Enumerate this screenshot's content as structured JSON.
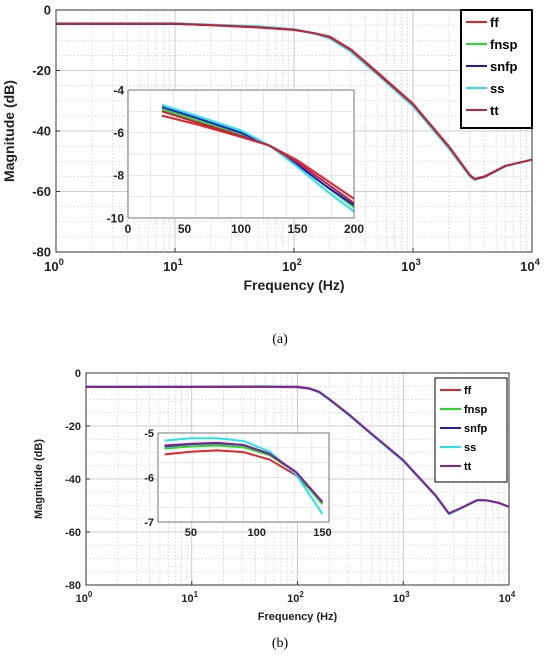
{
  "captions": [
    "(a)",
    "(b)"
  ],
  "chart_data": [
    {
      "type": "line",
      "panel": "a",
      "xlabel": "Frequency (Hz)",
      "ylabel": "Magnitude (dB)",
      "xscale": "log",
      "xlim": [
        1,
        10000
      ],
      "ylim": [
        -80,
        0
      ],
      "xticks": [
        {
          "base": "10",
          "exp": "0",
          "v": 1
        },
        {
          "base": "10",
          "exp": "1",
          "v": 10
        },
        {
          "base": "10",
          "exp": "2",
          "v": 100
        },
        {
          "base": "10",
          "exp": "3",
          "v": 1000
        },
        {
          "base": "10",
          "exp": "4",
          "v": 10000
        }
      ],
      "yticks": [
        {
          "label": "0",
          "v": 0
        },
        {
          "label": "-20",
          "v": -20
        },
        {
          "label": "-40",
          "v": -40
        },
        {
          "label": "-60",
          "v": -60
        },
        {
          "label": "-80",
          "v": -80
        }
      ],
      "grid": true,
      "legend": "top-right",
      "series": [
        {
          "name": "ff",
          "color": "#e8202a",
          "x": [
            1,
            10,
            50,
            100,
            150,
            200,
            300,
            500,
            1000,
            2000,
            3000,
            3300,
            4000,
            6000,
            10000
          ],
          "y": [
            -4.5,
            -4.5,
            -5.8,
            -6.6,
            -7.7,
            -8.8,
            -13,
            -20.5,
            -31,
            -45,
            -54.5,
            -55.8,
            -55,
            -51.5,
            -49.5
          ]
        },
        {
          "name": "fnsp",
          "color": "#22dd22",
          "x": [
            1,
            10,
            50,
            100,
            150,
            200,
            300,
            500,
            1000,
            2000,
            3000,
            3300,
            4000,
            6000,
            10000
          ],
          "y": [
            -4.6,
            -4.6,
            -5.6,
            -6.5,
            -7.8,
            -9.2,
            -13.5,
            -21,
            -31.5,
            -45.5,
            -54.8,
            -56,
            -55.2,
            -51.6,
            -49.5
          ]
        },
        {
          "name": "snfp",
          "color": "#1a1acc",
          "x": [
            1,
            10,
            50,
            100,
            150,
            200,
            300,
            500,
            1000,
            2000,
            3000,
            3300,
            4000,
            6000,
            10000
          ],
          "y": [
            -4.6,
            -4.6,
            -5.5,
            -6.4,
            -7.8,
            -9.3,
            -13.6,
            -21.1,
            -31.6,
            -45.6,
            -54.9,
            -56,
            -55.2,
            -51.6,
            -49.5
          ]
        },
        {
          "name": "ss",
          "color": "#22e5e5",
          "x": [
            1,
            10,
            50,
            100,
            150,
            200,
            300,
            500,
            1000,
            2000,
            3000,
            3300,
            4000,
            6000,
            10000
          ],
          "y": [
            -4.4,
            -4.4,
            -5.4,
            -6.3,
            -7.9,
            -9.4,
            -13.8,
            -21.3,
            -31.8,
            -45.8,
            -55,
            -56.2,
            -55.3,
            -51.7,
            -49.5
          ]
        },
        {
          "name": "tt",
          "color": "#c8203c",
          "x": [
            1,
            10,
            50,
            100,
            150,
            200,
            300,
            500,
            1000,
            2000,
            3000,
            3300,
            4000,
            6000,
            10000
          ],
          "y": [
            -4.5,
            -4.5,
            -5.7,
            -6.5,
            -7.7,
            -9.0,
            -13.2,
            -20.8,
            -31.2,
            -45.2,
            -54.6,
            -55.9,
            -55.1,
            -51.5,
            -49.5
          ]
        }
      ],
      "inset": {
        "xlim": [
          0,
          200
        ],
        "ylim": [
          -10,
          -4
        ],
        "xticks": [
          {
            "label": "0",
            "v": 0
          },
          {
            "label": "50",
            "v": 50
          },
          {
            "label": "100",
            "v": 100
          },
          {
            "label": "150",
            "v": 150
          },
          {
            "label": "200",
            "v": 200
          }
        ],
        "yticks": [
          {
            "label": "-4",
            "v": -4
          },
          {
            "label": "-6",
            "v": -6
          },
          {
            "label": "-8",
            "v": -8
          },
          {
            "label": "-10",
            "v": -10
          }
        ],
        "series": [
          {
            "name": "ff",
            "color": "#e8202a",
            "x": [
              30,
              60,
              100,
              125,
              150,
              175,
              200
            ],
            "y": [
              -5.2,
              -5.6,
              -6.2,
              -6.6,
              -7.3,
              -8.2,
              -9.1
            ]
          },
          {
            "name": "fnsp",
            "color": "#22dd22",
            "x": [
              30,
              60,
              100,
              125,
              150,
              175,
              200
            ],
            "y": [
              -4.9,
              -5.4,
              -6.1,
              -6.6,
              -7.5,
              -8.5,
              -9.5
            ]
          },
          {
            "name": "snfp",
            "color": "#1a1acc",
            "x": [
              30,
              60,
              100,
              125,
              150,
              175,
              200
            ],
            "y": [
              -4.8,
              -5.3,
              -6.0,
              -6.6,
              -7.5,
              -8.5,
              -9.4
            ]
          },
          {
            "name": "ss",
            "color": "#22e5e5",
            "x": [
              30,
              60,
              100,
              125,
              150,
              175,
              200
            ],
            "y": [
              -4.7,
              -5.2,
              -5.9,
              -6.6,
              -7.6,
              -8.7,
              -9.7
            ]
          },
          {
            "name": "tt",
            "color": "#c8203c",
            "x": [
              30,
              60,
              100,
              125,
              150,
              175,
              200
            ],
            "y": [
              -5.0,
              -5.5,
              -6.15,
              -6.6,
              -7.4,
              -8.35,
              -9.3
            ]
          }
        ]
      }
    },
    {
      "type": "line",
      "panel": "b",
      "xlabel": "Frequency (Hz)",
      "ylabel": "Magnitude (dB)",
      "xscale": "log",
      "xlim": [
        1,
        10000
      ],
      "ylim": [
        -80,
        0
      ],
      "xticks": [
        {
          "base": "10",
          "exp": "0",
          "v": 1
        },
        {
          "base": "10",
          "exp": "1",
          "v": 10
        },
        {
          "base": "10",
          "exp": "2",
          "v": 100
        },
        {
          "base": "10",
          "exp": "3",
          "v": 1000
        },
        {
          "base": "10",
          "exp": "4",
          "v": 10000
        }
      ],
      "yticks": [
        {
          "label": "0",
          "v": 0
        },
        {
          "label": "-20",
          "v": -20
        },
        {
          "label": "-40",
          "v": -40
        },
        {
          "label": "-60",
          "v": -60
        },
        {
          "label": "-80",
          "v": -80
        }
      ],
      "grid": true,
      "legend": "top-right",
      "series": [
        {
          "name": "ff",
          "color": "#e8202a",
          "x": [
            1,
            10,
            50,
            100,
            130,
            160,
            200,
            300,
            500,
            1000,
            2000,
            2700,
            3500,
            5000,
            6000,
            8000,
            10000
          ],
          "y": [
            -5.3,
            -5.3,
            -5.3,
            -5.4,
            -6.0,
            -7.2,
            -10,
            -15.5,
            -23,
            -33,
            -46,
            -53,
            -51,
            -48,
            -48,
            -49,
            -50.5
          ]
        },
        {
          "name": "fnsp",
          "color": "#22dd22",
          "x": [
            1,
            10,
            50,
            100,
            130,
            160,
            200,
            300,
            500,
            1000,
            2000,
            2700,
            3500,
            5000,
            6000,
            8000,
            10000
          ],
          "y": [
            -5.2,
            -5.2,
            -5.2,
            -5.3,
            -5.9,
            -7.1,
            -9.9,
            -15.4,
            -22.9,
            -33,
            -46,
            -53,
            -51,
            -48,
            -48,
            -49,
            -50.5
          ]
        },
        {
          "name": "snfp",
          "color": "#1a1acc",
          "x": [
            1,
            10,
            50,
            100,
            130,
            160,
            200,
            300,
            500,
            1000,
            2000,
            2700,
            3500,
            5000,
            6000,
            8000,
            10000
          ],
          "y": [
            -5.2,
            -5.2,
            -5.1,
            -5.2,
            -5.8,
            -7.1,
            -9.9,
            -15.4,
            -22.9,
            -33,
            -46,
            -53,
            -51,
            -48,
            -48,
            -49,
            -50.5
          ]
        },
        {
          "name": "ss",
          "color": "#22e5e5",
          "x": [
            1,
            10,
            50,
            100,
            130,
            160,
            200,
            300,
            500,
            1000,
            2000,
            2700,
            3500,
            5000,
            6000,
            8000,
            10000
          ],
          "y": [
            -5.1,
            -5.1,
            -5.0,
            -5.2,
            -6.0,
            -7.4,
            -10.2,
            -15.7,
            -23.2,
            -33.3,
            -46.3,
            -53.3,
            -51.2,
            -48.1,
            -48,
            -49,
            -50.5
          ]
        },
        {
          "name": "tt",
          "color": "#8a1f9a",
          "x": [
            1,
            10,
            50,
            100,
            130,
            160,
            200,
            300,
            500,
            1000,
            2000,
            2700,
            3500,
            5000,
            6000,
            8000,
            10000
          ],
          "y": [
            -5.2,
            -5.2,
            -5.15,
            -5.25,
            -5.85,
            -7.1,
            -9.9,
            -15.4,
            -22.9,
            -33,
            -46,
            -53,
            -51,
            -48,
            -48,
            -49,
            -50.5
          ]
        }
      ],
      "inset": {
        "xlim": [
          25,
          155
        ],
        "ylim": [
          -7,
          -5
        ],
        "xticks": [
          {
            "label": "50",
            "v": 50
          },
          {
            "label": "100",
            "v": 100
          },
          {
            "label": "150",
            "v": 150
          }
        ],
        "yticks": [
          {
            "label": "-5",
            "v": -5
          },
          {
            "label": "-6",
            "v": -6
          },
          {
            "label": "-7",
            "v": -7
          }
        ],
        "series": [
          {
            "name": "ff",
            "color": "#e8202a",
            "x": [
              30,
              50,
              70,
              90,
              110,
              130,
              150
            ],
            "y": [
              -5.48,
              -5.42,
              -5.39,
              -5.43,
              -5.6,
              -5.95,
              -6.55
            ]
          },
          {
            "name": "fnsp",
            "color": "#22dd22",
            "x": [
              30,
              50,
              70,
              90,
              110,
              130,
              150
            ],
            "y": [
              -5.35,
              -5.3,
              -5.28,
              -5.32,
              -5.5,
              -5.9,
              -6.6
            ]
          },
          {
            "name": "snfp",
            "color": "#1a1acc",
            "x": [
              30,
              50,
              70,
              90,
              110,
              130,
              150
            ],
            "y": [
              -5.3,
              -5.25,
              -5.23,
              -5.27,
              -5.47,
              -5.88,
              -6.55
            ]
          },
          {
            "name": "ss",
            "color": "#22e5e5",
            "x": [
              30,
              50,
              70,
              90,
              110,
              130,
              150
            ],
            "y": [
              -5.17,
              -5.12,
              -5.12,
              -5.18,
              -5.42,
              -5.93,
              -6.82
            ]
          },
          {
            "name": "tt",
            "color": "#8a1f9a",
            "x": [
              30,
              50,
              70,
              90,
              110,
              130,
              150
            ],
            "y": [
              -5.28,
              -5.24,
              -5.22,
              -5.27,
              -5.47,
              -5.88,
              -6.55
            ]
          }
        ]
      }
    }
  ]
}
